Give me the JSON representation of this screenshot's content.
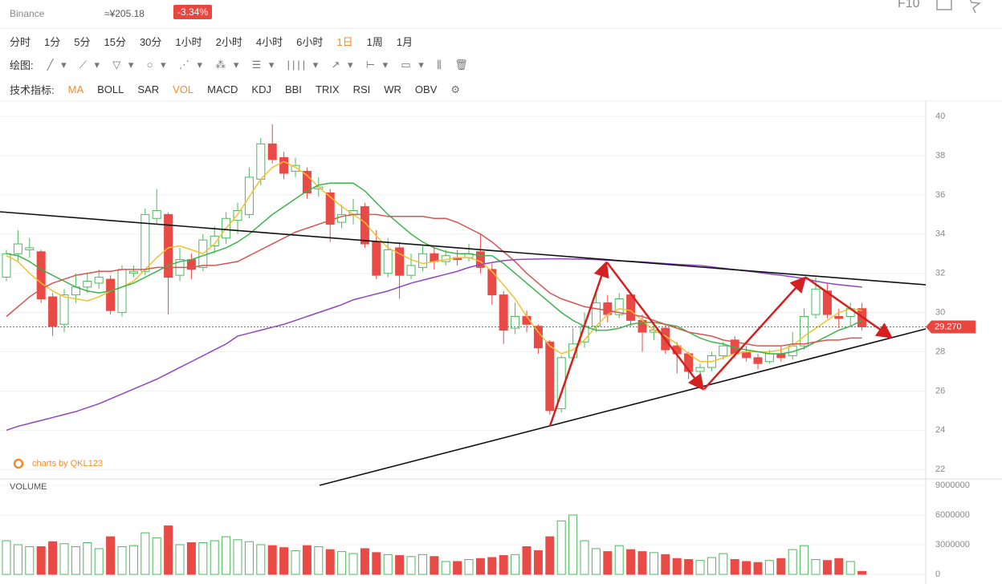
{
  "header": {
    "exchange": "Binance",
    "cny_price": "≈¥205.18",
    "change": "-3.34%",
    "f10": "F10"
  },
  "toolbar": {
    "intervals": [
      "分时",
      "1分",
      "5分",
      "15分",
      "30分",
      "1小时",
      "2小时",
      "4小时",
      "6小时",
      "1日",
      "1周",
      "1月"
    ],
    "draw_label": "绘图:",
    "indicator_label": "技术指标:",
    "indicators": [
      "MA",
      "BOLL",
      "SAR",
      "VOL",
      "MACD",
      "KDJ",
      "BBI",
      "TRIX",
      "RSI",
      "WR",
      "OBV"
    ]
  },
  "chart_data": {
    "type": "candlestick",
    "watermark": "charts by QKL123",
    "open": [
      31.8,
      33.0,
      33.2,
      33.1,
      30.8,
      29.4,
      30.9,
      31.3,
      31.5,
      31.7,
      30.0,
      32.0,
      32.1,
      34.8,
      35.0,
      31.9,
      32.7,
      32.3,
      33.4,
      33.8,
      34.7,
      35.0,
      36.8,
      38.6,
      37.9,
      37.2,
      37.2,
      36.3,
      36.1,
      34.6,
      35.0,
      35.4,
      33.6,
      32.0,
      33.3,
      31.9,
      32.3,
      33.0,
      32.6,
      32.8,
      32.8,
      33.1,
      32.2,
      30.9,
      29.2,
      29.8,
      29.3,
      28.5,
      25.1,
      27.7,
      28.5,
      29.3,
      30.5,
      29.9,
      30.9,
      29.6,
      29.0,
      29.2,
      28.3,
      27.9,
      27.0,
      27.2,
      27.8,
      28.6,
      28.0,
      27.7,
      27.5,
      27.9,
      27.8,
      28.3,
      29.9,
      31.1,
      29.8,
      29.8,
      30.2
    ],
    "close": [
      33.0,
      33.5,
      33.3,
      30.7,
      29.3,
      30.9,
      31.3,
      31.6,
      31.8,
      30.1,
      32.2,
      32.1,
      35.0,
      35.2,
      31.8,
      32.7,
      32.2,
      33.7,
      33.9,
      34.8,
      35.2,
      36.9,
      38.6,
      37.8,
      37.1,
      37.5,
      36.1,
      36.4,
      34.5,
      35.0,
      35.2,
      33.5,
      31.9,
      33.2,
      31.9,
      32.4,
      33.0,
      32.6,
      32.9,
      32.7,
      33.0,
      32.3,
      30.9,
      29.1,
      29.8,
      29.4,
      28.2,
      25.0,
      27.7,
      28.4,
      29.3,
      30.5,
      29.9,
      30.7,
      29.6,
      29.0,
      29.1,
      28.1,
      27.9,
      27.0,
      27.2,
      27.8,
      28.3,
      27.9,
      27.7,
      27.4,
      27.9,
      27.7,
      28.3,
      29.8,
      31.2,
      29.9,
      29.7,
      30.2,
      29.27
    ],
    "high": [
      33.2,
      34.2,
      33.8,
      33.2,
      31.0,
      31.2,
      32.0,
      32.0,
      32.2,
      31.9,
      32.4,
      32.4,
      35.3,
      36.3,
      35.1,
      33.3,
      33.0,
      34.0,
      34.4,
      35.1,
      35.6,
      37.4,
      38.9,
      39.6,
      38.2,
      37.9,
      37.4,
      36.9,
      36.3,
      35.5,
      35.8,
      35.6,
      34.2,
      33.8,
      33.6,
      33.0,
      33.4,
      33.3,
      33.2,
      33.2,
      33.5,
      34.0,
      32.5,
      31.1,
      30.5,
      30.1,
      29.4,
      28.6,
      27.8,
      29.2,
      30.0,
      31.1,
      30.9,
      31.0,
      31.0,
      29.9,
      29.4,
      29.4,
      28.5,
      28.0,
      27.4,
      28.0,
      28.5,
      28.8,
      28.3,
      27.9,
      28.1,
      28.3,
      29.0,
      30.2,
      31.8,
      31.5,
      30.2,
      30.5,
      30.5
    ],
    "low": [
      31.6,
      32.6,
      32.8,
      30.5,
      28.8,
      29.0,
      30.5,
      31.0,
      31.2,
      29.9,
      29.8,
      31.8,
      31.9,
      34.5,
      29.9,
      31.6,
      31.7,
      32.1,
      33.0,
      33.5,
      34.0,
      34.8,
      36.5,
      37.6,
      36.8,
      36.9,
      35.8,
      35.9,
      33.6,
      34.3,
      34.5,
      33.3,
      31.7,
      31.8,
      30.7,
      31.7,
      32.1,
      32.2,
      32.4,
      32.4,
      32.6,
      32.0,
      30.4,
      28.4,
      28.9,
      29.0,
      27.9,
      24.8,
      24.9,
      27.5,
      28.2,
      29.0,
      29.5,
      29.7,
      29.3,
      28.0,
      28.6,
      27.9,
      26.9,
      26.6,
      26.4,
      27.0,
      27.6,
      27.7,
      27.5,
      27.1,
      27.4,
      27.5,
      27.6,
      28.1,
      29.7,
      29.7,
      29.2,
      29.3,
      29.1
    ],
    "up_color": "#4cb85c",
    "down_color": "#ea4a45",
    "ylim": [
      21.6,
      40.7
    ],
    "yticks": [
      22,
      24,
      26,
      28,
      30,
      32,
      34,
      36,
      38,
      40
    ],
    "ma_lines": [
      {
        "color": "#f2c12e",
        "values": [
          32.9,
          32.6,
          32.0,
          31.5,
          31.1,
          30.8,
          30.7,
          30.6,
          30.8,
          31.1,
          31.3,
          31.6,
          32.2,
          32.8,
          33.3,
          33.4,
          33.2,
          33.0,
          33.5,
          34.3,
          35.0,
          35.9,
          36.8,
          37.4,
          37.7,
          37.4,
          37.0,
          36.4,
          35.9,
          35.4,
          35.0,
          34.6,
          33.9,
          33.3,
          33.0,
          32.7,
          32.5,
          32.6,
          32.7,
          32.8,
          32.8,
          32.6,
          32.1,
          31.4,
          30.7,
          29.8,
          29.0,
          28.3,
          27.9,
          28.1,
          28.6,
          29.3,
          29.9,
          30.2,
          30.1,
          29.6,
          29.1,
          28.8,
          28.4,
          27.9,
          27.5,
          27.5,
          27.7,
          27.9,
          28.0,
          28.0,
          28.0,
          28.1,
          28.3,
          28.8,
          29.2,
          29.6,
          30.0,
          30.2,
          30.1
        ]
      },
      {
        "color": "#3cb44b",
        "values": [
          33.0,
          32.9,
          32.6,
          32.2,
          31.9,
          31.6,
          31.3,
          31.1,
          31.0,
          31.1,
          31.3,
          31.5,
          31.8,
          32.1,
          32.4,
          32.6,
          32.7,
          32.9,
          33.1,
          33.3,
          33.6,
          34.0,
          34.5,
          35.0,
          35.4,
          35.8,
          36.2,
          36.5,
          36.6,
          36.6,
          36.6,
          36.2,
          35.6,
          35.0,
          34.5,
          34.0,
          33.6,
          33.3,
          33.1,
          33.0,
          33.0,
          32.9,
          32.9,
          32.5,
          32.0,
          31.5,
          31.0,
          30.5,
          30.0,
          29.6,
          29.3,
          29.1,
          29.1,
          29.2,
          29.4,
          29.5,
          29.5,
          29.4,
          29.3,
          29.0,
          28.7,
          28.5,
          28.4,
          28.2,
          28.1,
          28.0,
          27.9,
          27.9,
          28.0,
          28.2,
          28.5,
          28.8,
          29.1,
          29.3,
          29.6
        ]
      },
      {
        "color": "#d9534f",
        "values": [
          29.8,
          30.3,
          30.8,
          31.2,
          31.5,
          31.7,
          31.9,
          32.0,
          32.1,
          32.1,
          32.2,
          32.2,
          32.2,
          32.3,
          32.3,
          32.3,
          32.3,
          32.4,
          32.4,
          32.5,
          32.6,
          32.9,
          33.2,
          33.5,
          33.8,
          34.1,
          34.3,
          34.5,
          34.7,
          34.9,
          35.0,
          35.0,
          35.0,
          34.9,
          34.9,
          34.9,
          34.9,
          34.8,
          34.8,
          34.6,
          34.3,
          34.0,
          33.6,
          33.1,
          32.6,
          32.0,
          31.5,
          31.0,
          30.7,
          30.5,
          30.3,
          30.2,
          30.1,
          30.0,
          29.9,
          29.8,
          29.6,
          29.4,
          29.2,
          29.0,
          28.9,
          28.8,
          28.6,
          28.5,
          28.4,
          28.3,
          28.3,
          28.3,
          28.4,
          28.4,
          28.5,
          28.6,
          28.6,
          28.7,
          28.7
        ]
      },
      {
        "color": "#8e44c8",
        "values": [
          24.0,
          24.2,
          24.35,
          24.5,
          24.65,
          24.8,
          24.95,
          25.15,
          25.35,
          25.6,
          25.85,
          26.1,
          26.35,
          26.6,
          26.9,
          27.2,
          27.5,
          27.8,
          28.1,
          28.4,
          28.8,
          28.95,
          29.1,
          29.25,
          29.4,
          29.6,
          29.8,
          30.0,
          30.2,
          30.4,
          30.65,
          30.8,
          30.95,
          31.1,
          31.3,
          31.5,
          31.65,
          31.8,
          31.95,
          32.1,
          32.3,
          32.45,
          32.55,
          32.65,
          32.7,
          32.72,
          32.73,
          32.74,
          32.74,
          32.73,
          32.72,
          32.7,
          32.67,
          32.64,
          32.61,
          32.58,
          32.54,
          32.5,
          32.46,
          32.43,
          32.4,
          32.33,
          32.26,
          32.19,
          32.12,
          32.05,
          31.97,
          31.9,
          31.82,
          31.74,
          31.6,
          31.5,
          31.42,
          31.36,
          31.3
        ]
      }
    ],
    "last_price": {
      "value": 29.27,
      "label": "29.270"
    },
    "volume": {
      "title": "VOLUME",
      "ylim": [
        0,
        9400000
      ],
      "yticks": [
        0,
        3000000,
        6000000,
        9000000
      ],
      "values": [
        3400000,
        3000000,
        2800000,
        2800000,
        3300000,
        3100000,
        2800000,
        3200000,
        2600000,
        3800000,
        2800000,
        2900000,
        4200000,
        3700000,
        4900000,
        3000000,
        3200000,
        3200000,
        3400000,
        3800000,
        3500000,
        3300000,
        3000000,
        2900000,
        2700000,
        2400000,
        2900000,
        2800000,
        2500000,
        2300000,
        2100000,
        2600000,
        2200000,
        2000000,
        1900000,
        1800000,
        2000000,
        1800000,
        1300000,
        1300000,
        1500000,
        1600000,
        1700000,
        1900000,
        2000000,
        2800000,
        2400000,
        3800000,
        5400000,
        6000000,
        3400000,
        2600000,
        2300000,
        2900000,
        2500000,
        2300000,
        2200000,
        2000000,
        1600000,
        1500000,
        1400000,
        1700000,
        2100000,
        1500000,
        1300000,
        1200000,
        1400000,
        1600000,
        2500000,
        2900000,
        1500000,
        1400000,
        1600000,
        1300000,
        300000
      ]
    }
  }
}
